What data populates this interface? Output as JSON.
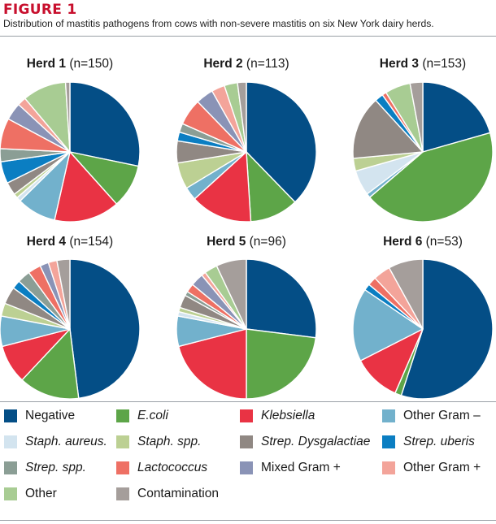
{
  "figure": {
    "label": "FIGURE 1",
    "caption": "Distribution of mastitis pathogens from cows with non-severe mastitis on six New York dairy herds."
  },
  "colors": {
    "Negative": "#044e86",
    "E.coli": "#5da548",
    "Klebsiella": "#e93344",
    "Other Gram –": "#72b1cc",
    "Staph. aureus.": "#d3e4ef",
    "Staph. spp.": "#bcd093",
    "Strep. Dysgalactiae": "#908883",
    "Strep. uberis": "#0b7ec2",
    "Strep. spp.": "#8b9e95",
    "Lactococcus": "#ee7064",
    "Mixed Gram +": "#8a93b6",
    "Other Gram +": "#f3a49a",
    "Other": "#a8cc93",
    "Contamination": "#a59e9b"
  },
  "legend": [
    {
      "label": "Negative",
      "italic": false
    },
    {
      "label": "E.coli",
      "italic": true
    },
    {
      "label": "Klebsiella",
      "italic": true
    },
    {
      "label": "Other Gram –",
      "italic": false
    },
    {
      "label": "Staph. aureus.",
      "italic": true
    },
    {
      "label": "Staph. spp.",
      "italic": true
    },
    {
      "label": "Strep. Dysgalactiae",
      "italic": true
    },
    {
      "label": "Strep. uberis",
      "italic": true
    },
    {
      "label": "Strep. spp.",
      "italic": true
    },
    {
      "label": "Lactococcus",
      "italic": true
    },
    {
      "label": "Mixed Gram +",
      "italic": false
    },
    {
      "label": "Other Gram +",
      "italic": false
    },
    {
      "label": "Other",
      "italic": false
    },
    {
      "label": "Contamination",
      "italic": false
    }
  ],
  "chart_data": [
    {
      "type": "pie",
      "title": "Herd 1",
      "n_label": "(n=150)",
      "slices": [
        {
          "category": "Negative",
          "value": 28
        },
        {
          "category": "E.coli",
          "value": 10
        },
        {
          "category": "Klebsiella",
          "value": 15
        },
        {
          "category": "Other Gram –",
          "value": 9
        },
        {
          "category": "Staph. aureus.",
          "value": 1
        },
        {
          "category": "Staph. spp.",
          "value": 1
        },
        {
          "category": "Strep. Dysgalactiae",
          "value": 3
        },
        {
          "category": "Strep. uberis",
          "value": 5
        },
        {
          "category": "Strep. spp.",
          "value": 3
        },
        {
          "category": "Lactococcus",
          "value": 7
        },
        {
          "category": "Mixed Gram +",
          "value": 4
        },
        {
          "category": "Other Gram +",
          "value": 2
        },
        {
          "category": "Other",
          "value": 10
        },
        {
          "category": "Contamination",
          "value": 1
        }
      ]
    },
    {
      "type": "pie",
      "title": "Herd 2",
      "n_label": "(n=113)",
      "slices": [
        {
          "category": "Negative",
          "value": 37
        },
        {
          "category": "E.coli",
          "value": 11
        },
        {
          "category": "Klebsiella",
          "value": 14
        },
        {
          "category": "Other Gram –",
          "value": 3
        },
        {
          "category": "Staph. spp.",
          "value": 6
        },
        {
          "category": "Strep. Dysgalactiae",
          "value": 5
        },
        {
          "category": "Strep. uberis",
          "value": 2
        },
        {
          "category": "Strep. spp.",
          "value": 2
        },
        {
          "category": "Lactococcus",
          "value": 6
        },
        {
          "category": "Mixed Gram +",
          "value": 4
        },
        {
          "category": "Other Gram +",
          "value": 3
        },
        {
          "category": "Other",
          "value": 3
        },
        {
          "category": "Contamination",
          "value": 2
        }
      ]
    },
    {
      "type": "pie",
      "title": "Herd 3",
      "n_label": "(n=153)",
      "slices": [
        {
          "category": "Negative",
          "value": 21
        },
        {
          "category": "E.coli",
          "value": 44
        },
        {
          "category": "Other Gram –",
          "value": 1
        },
        {
          "category": "Staph. aureus.",
          "value": 6
        },
        {
          "category": "Staph. spp.",
          "value": 3
        },
        {
          "category": "Strep. Dysgalactiae",
          "value": 15
        },
        {
          "category": "Strep. uberis",
          "value": 2
        },
        {
          "category": "Lactococcus",
          "value": 1
        },
        {
          "category": "Other",
          "value": 6
        },
        {
          "category": "Contamination",
          "value": 3
        }
      ]
    },
    {
      "type": "pie",
      "title": "Herd 4",
      "n_label": "(n=154)",
      "slices": [
        {
          "category": "Negative",
          "value": 48
        },
        {
          "category": "E.coli",
          "value": 14
        },
        {
          "category": "Klebsiella",
          "value": 9
        },
        {
          "category": "Other Gram –",
          "value": 7
        },
        {
          "category": "Staph. spp.",
          "value": 3
        },
        {
          "category": "Strep. Dysgalactiae",
          "value": 4
        },
        {
          "category": "Strep. uberis",
          "value": 2
        },
        {
          "category": "Strep. spp.",
          "value": 3
        },
        {
          "category": "Lactococcus",
          "value": 3
        },
        {
          "category": "Mixed Gram +",
          "value": 2
        },
        {
          "category": "Other Gram +",
          "value": 2
        },
        {
          "category": "Contamination",
          "value": 3
        }
      ]
    },
    {
      "type": "pie",
      "title": "Herd 5",
      "n_label": "(n=96)",
      "slices": [
        {
          "category": "Negative",
          "value": 27
        },
        {
          "category": "E.coli",
          "value": 23
        },
        {
          "category": "Klebsiella",
          "value": 21
        },
        {
          "category": "Other Gram –",
          "value": 7
        },
        {
          "category": "Staph. aureus.",
          "value": 1
        },
        {
          "category": "Staph. spp.",
          "value": 1
        },
        {
          "category": "Strep. Dysgalactiae",
          "value": 3
        },
        {
          "category": "Strep. spp.",
          "value": 1
        },
        {
          "category": "Lactococcus",
          "value": 2
        },
        {
          "category": "Mixed Gram +",
          "value": 3
        },
        {
          "category": "Other Gram +",
          "value": 1
        },
        {
          "category": "Other",
          "value": 3
        },
        {
          "category": "Contamination",
          "value": 7
        }
      ]
    },
    {
      "type": "pie",
      "title": "Herd 6",
      "n_label": "(n=53)",
      "slices": [
        {
          "category": "Negative",
          "value": 55
        },
        {
          "category": "E.coli",
          "value": 1.5
        },
        {
          "category": "Klebsiella",
          "value": 11
        },
        {
          "category": "Other Gram –",
          "value": 17
        },
        {
          "category": "Strep. uberis",
          "value": 1.5
        },
        {
          "category": "Lactococcus",
          "value": 2
        },
        {
          "category": "Other Gram +",
          "value": 4
        },
        {
          "category": "Contamination",
          "value": 8
        }
      ]
    }
  ]
}
